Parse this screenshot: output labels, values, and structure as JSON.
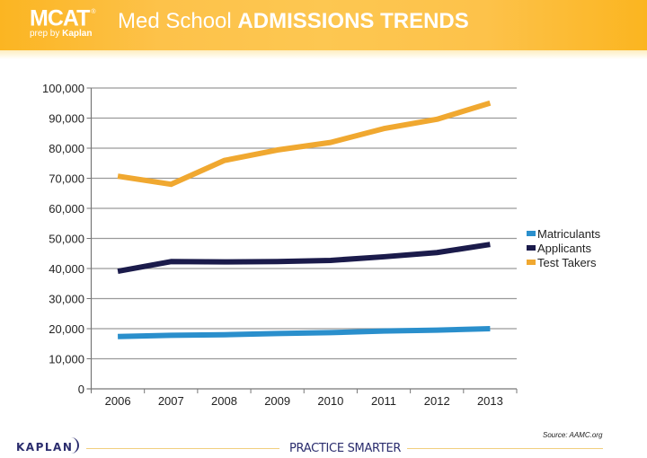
{
  "header": {
    "logo_main": "MCAT",
    "logo_reg": "®",
    "logo_sub_prefix": "prep by ",
    "logo_sub_brand": "Kaplan",
    "title_normal": "Med School ",
    "title_bold": "ADMISSIONS TRENDS"
  },
  "colors": {
    "header_gold": "#FDC24A",
    "matriculants": "#2A8FCC",
    "applicants": "#1B1B4B",
    "test_takers": "#F0A830",
    "kaplan_navy": "#2B2D6E"
  },
  "chart_data": {
    "type": "line",
    "title": "Med School ADMISSIONS TRENDS",
    "xlabel": "",
    "ylabel": "",
    "categories": [
      "2006",
      "2007",
      "2008",
      "2009",
      "2010",
      "2011",
      "2012",
      "2013"
    ],
    "ylim": [
      0,
      100000
    ],
    "yticks": [
      0,
      10000,
      20000,
      30000,
      40000,
      50000,
      60000,
      70000,
      80000,
      90000,
      100000
    ],
    "ytick_labels": [
      "0",
      "10,000",
      "20,000",
      "30,000",
      "40,000",
      "50,000",
      "60,000",
      "70,000",
      "80,000",
      "90,000",
      "100,000"
    ],
    "grid": true,
    "legend_position": "right",
    "series": [
      {
        "name": "Matriculants",
        "color": "#2A8FCC",
        "values": [
          17400,
          17800,
          18000,
          18400,
          18700,
          19200,
          19500,
          20000
        ]
      },
      {
        "name": "Applicants",
        "color": "#1B1B4B",
        "values": [
          39100,
          42300,
          42200,
          42300,
          42700,
          43900,
          45300,
          48000
        ]
      },
      {
        "name": "Test Takers",
        "color": "#F0A830",
        "values": [
          70700,
          68000,
          75900,
          79400,
          81900,
          86500,
          89600,
          95000
        ]
      }
    ],
    "source": "Source: AAMC.org"
  },
  "footer": {
    "brand": "KAPLAN",
    "tagline": "PRACTICE SMARTER"
  }
}
